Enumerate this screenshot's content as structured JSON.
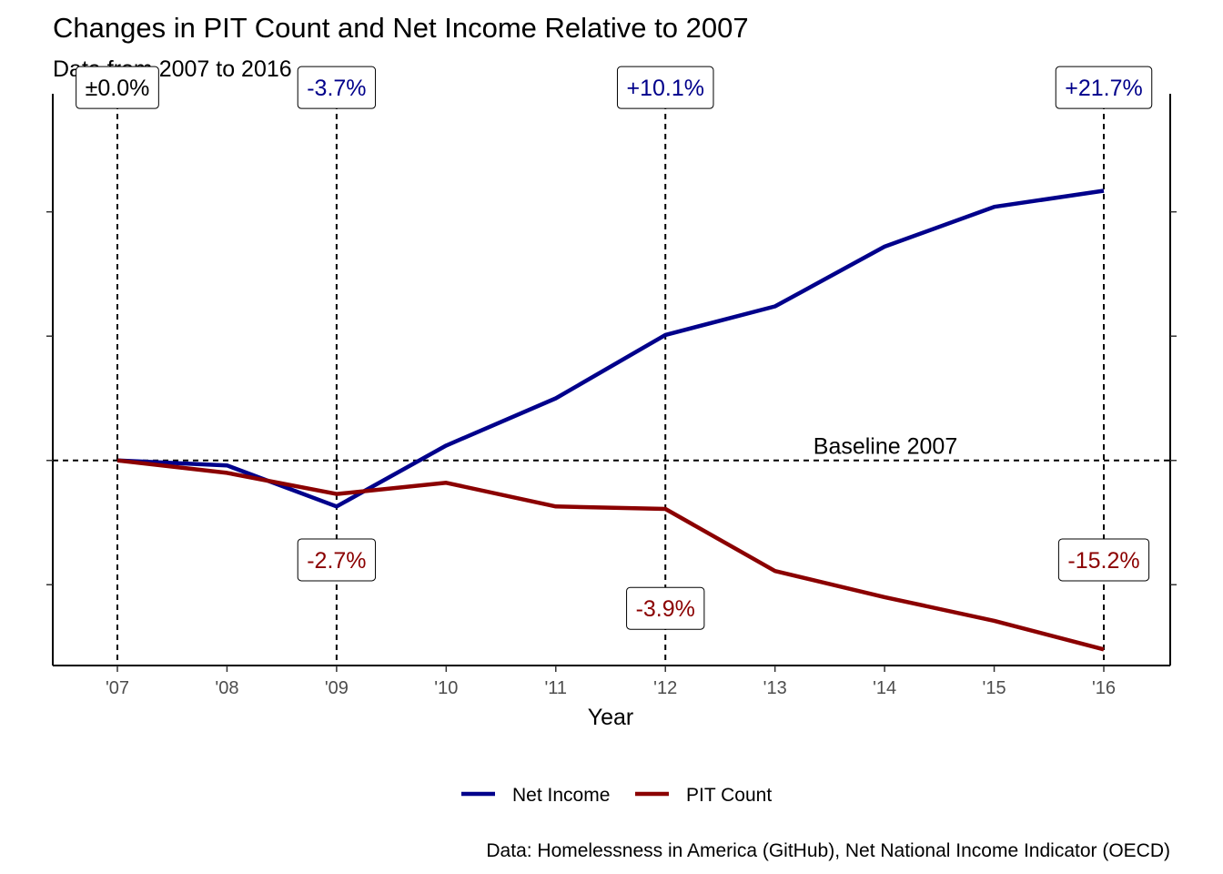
{
  "chart_data": {
    "type": "line",
    "title": "Changes in PIT Count and Net Income Relative to 2007",
    "subtitle": "Data from 2007 to 2016",
    "xlabel": "Year",
    "ylabel": "",
    "x": [
      2007,
      2008,
      2009,
      2010,
      2011,
      2012,
      2013,
      2014,
      2015,
      2016
    ],
    "x_tick_labels": [
      "'07",
      "'08",
      "'09",
      "'10",
      "'11",
      "'12",
      "'13",
      "'14",
      "'15",
      "'16"
    ],
    "ylim": [
      -16.5,
      29.5
    ],
    "y_ticks": [
      -10,
      0,
      10,
      20,
      30
    ],
    "grid": false,
    "legend_position": "bottom",
    "series": [
      {
        "name": "Net Income",
        "color": "#00008b",
        "values": [
          0.0,
          -0.4,
          -3.7,
          1.2,
          5.0,
          10.1,
          12.4,
          17.2,
          20.4,
          21.7
        ]
      },
      {
        "name": "PIT Count",
        "color": "#8b0000",
        "values": [
          0.0,
          -1.0,
          -2.7,
          -1.8,
          -3.7,
          -3.9,
          -8.9,
          -11.0,
          -12.9,
          -15.2
        ]
      }
    ],
    "reference_lines": {
      "horizontal": {
        "y": 0,
        "label": "Baseline 2007"
      },
      "vertical": [
        2007,
        2009,
        2012,
        2016
      ]
    },
    "annotations": [
      {
        "x": 2007,
        "y": 30.0,
        "text": "±0.0%",
        "color": "#000000"
      },
      {
        "x": 2009,
        "y": 30.0,
        "text": "-3.7%",
        "color": "#00008b"
      },
      {
        "x": 2012,
        "y": 30.0,
        "text": "+10.1%",
        "color": "#00008b"
      },
      {
        "x": 2016,
        "y": 30.0,
        "text": "+21.7%",
        "color": "#00008b"
      },
      {
        "x": 2009,
        "y": -8.0,
        "text": "-2.7%",
        "color": "#8b0000"
      },
      {
        "x": 2012,
        "y": -11.9,
        "text": "-3.9%",
        "color": "#8b0000"
      },
      {
        "x": 2016,
        "y": -8.0,
        "text": "-15.2%",
        "color": "#8b0000"
      }
    ],
    "caption": "Data: Homelessness in America (GitHub), Net National Income Indicator (OECD)"
  }
}
